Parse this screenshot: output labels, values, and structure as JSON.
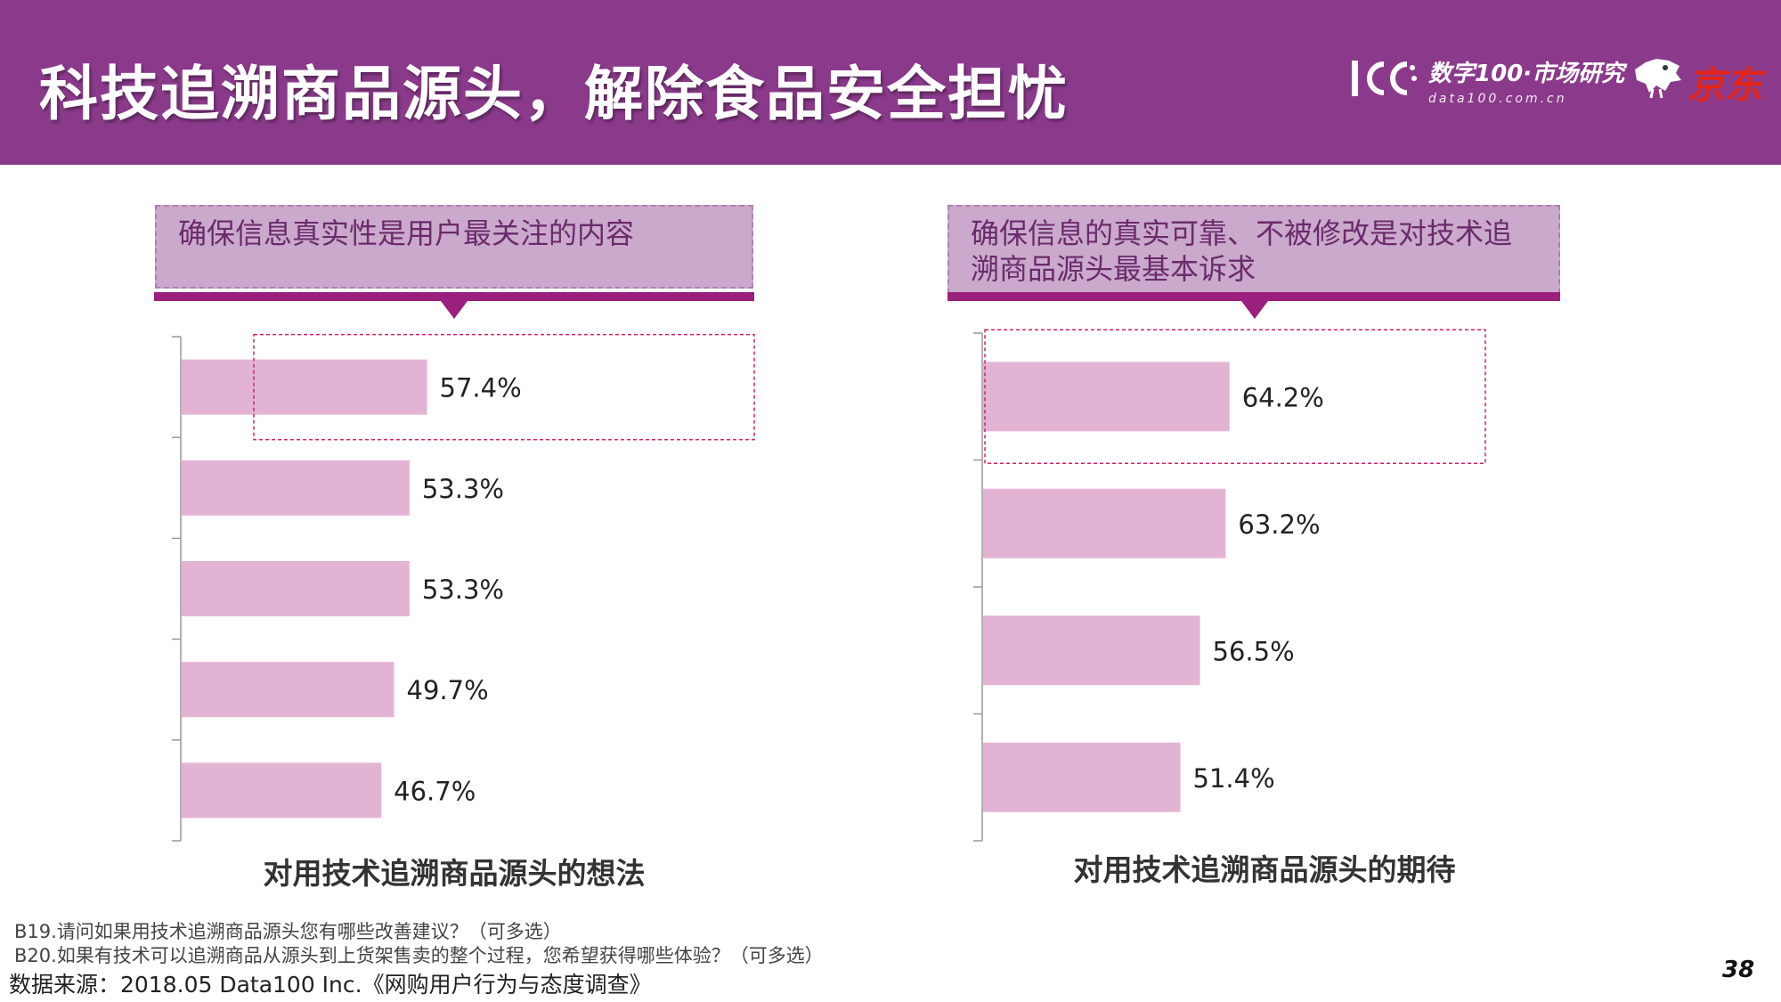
{
  "header": {
    "title": "科技追溯商品源头，解除食品安全担忧",
    "brand_100_text": "数字100·市场研究",
    "brand_100_url": "data100.com.cn",
    "jd_text": "京东"
  },
  "left_panel": {
    "callout": "确保信息真实性是用户最关注的内容"
  },
  "right_panel": {
    "callout": "确保信息的真实可靠、不被修改是对技术追溯商品源头最基本诉求"
  },
  "chart_data": [
    {
      "type": "bar",
      "orientation": "horizontal",
      "title": "对用技术追溯商品源头的想法",
      "categories": [
        "",
        "",
        "",
        "",
        ""
      ],
      "values": [
        57.4,
        53.3,
        53.3,
        49.7,
        46.7
      ],
      "value_labels": [
        "57.4%",
        "53.3%",
        "53.3%",
        "49.7%",
        "46.7%"
      ],
      "xlim": [
        0,
        100
      ],
      "highlight_index": 0,
      "bar_color": "#e3b3d4"
    },
    {
      "type": "bar",
      "orientation": "horizontal",
      "title": "对用技术追溯商品源头的期待",
      "categories": [
        "",
        "",
        "",
        ""
      ],
      "values": [
        64.2,
        63.2,
        56.5,
        51.4
      ],
      "value_labels": [
        "64.2%",
        "63.2%",
        "56.5%",
        "51.4%"
      ],
      "xlim": [
        0,
        100
      ],
      "highlight_index": 0,
      "bar_color": "#e3b3d4"
    }
  ],
  "footnotes": {
    "b19": "B19.请问如果用技术追溯商品源头您有哪些改善建议？（可多选）",
    "b20": "B20.如果有技术可以追溯商品从源头到上货架售卖的整个过程，您希望获得哪些体验？（可多选）",
    "source": "数据来源：2018.05 Data100 Inc.《网购用户行为与态度调查》",
    "page_number": "38"
  },
  "colors": {
    "header_bg": "#8b3a8b",
    "callout_bg": "#cba9cc",
    "callout_bar": "#9b1f7d",
    "bar": "#e3b3d4",
    "highlight_border": "#d0206e"
  }
}
